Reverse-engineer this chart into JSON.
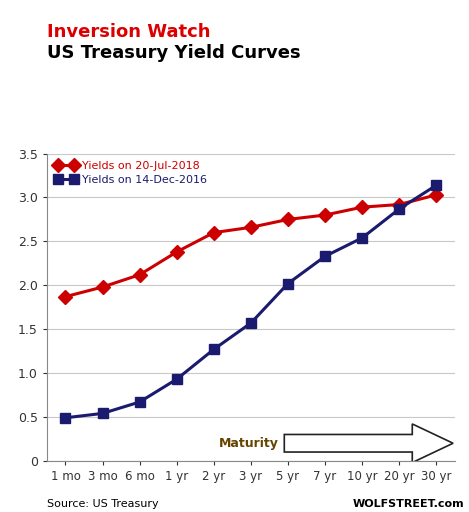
{
  "title_line1": "Inversion Watch",
  "title_line2": "US Treasury Yield Curves",
  "title_line1_color": "#dd0000",
  "title_line2_color": "#000000",
  "x_labels": [
    "1 mo",
    "3 mo",
    "6 mo",
    "1 yr",
    "2 yr",
    "3 yr",
    "5 yr",
    "7 yr",
    "10 yr",
    "20 yr",
    "30 yr"
  ],
  "x_positions": [
    0,
    1,
    2,
    3,
    4,
    5,
    6,
    7,
    8,
    9,
    10
  ],
  "series1_label": "Yields on 20-Jul-2018",
  "series1_color": "#cc0000",
  "series1_values": [
    1.87,
    1.98,
    2.12,
    2.38,
    2.6,
    2.66,
    2.75,
    2.8,
    2.89,
    2.92,
    3.03
  ],
  "series1_marker": "D",
  "series2_label": "Yields on 14-Dec-2016",
  "series2_color": "#1a1a6e",
  "series2_values": [
    0.49,
    0.54,
    0.67,
    0.93,
    1.27,
    1.57,
    2.02,
    2.33,
    2.54,
    2.87,
    3.14
  ],
  "series2_marker": "s",
  "ylim": [
    0,
    3.5
  ],
  "yticks": [
    0,
    0.5,
    1.0,
    1.5,
    2.0,
    2.5,
    3.0,
    3.5
  ],
  "source_text": "Source: US Treasury",
  "watermark_text": "WOLFSTREET.com",
  "maturity_label": "Maturity",
  "background_color": "#ffffff",
  "grid_color": "#c8c8c8",
  "linewidth": 2.2,
  "markersize": 7
}
